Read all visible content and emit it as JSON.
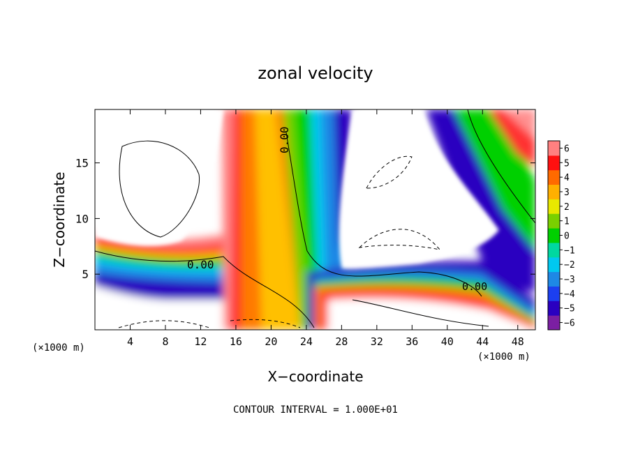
{
  "chart_data": {
    "type": "heatmap",
    "title": "zonal velocity",
    "xlabel": "X−coordinate",
    "ylabel": "Z−coordinate",
    "x_unit_label": "(×1000 m)",
    "x_unit_label_right": "(×1000 m)",
    "xlim": [
      0,
      50
    ],
    "ylim": [
      0,
      19.8
    ],
    "x_ticks": [
      4,
      8,
      12,
      16,
      20,
      24,
      28,
      32,
      36,
      40,
      44,
      48
    ],
    "y_ticks": [
      5,
      10,
      15
    ],
    "colorbar": {
      "min": -6,
      "max": 6,
      "ticks": [
        6,
        5,
        4,
        3,
        2,
        1,
        0,
        -1,
        -2,
        -3,
        -4,
        -5,
        -6
      ],
      "tick_labels": [
        "6",
        "5",
        "4",
        "3",
        "2",
        "1",
        "0",
        "−1",
        "−2",
        "−3",
        "−4",
        "−5",
        "−6"
      ],
      "colors": [
        "#7b1fa2",
        "#2a00c0",
        "#1c3ff0",
        "#1e88e5",
        "#00c8f0",
        "#00d8a0",
        "#00d000",
        "#7ad000",
        "#e8e800",
        "#ffb000",
        "#ff6a00",
        "#ff1010",
        "#ff8080"
      ]
    },
    "contour_labels": [
      "0.00",
      "0.00",
      "0.00"
    ],
    "grid": false,
    "footer": "CONTOUR INTERVAL = 1.000E+01"
  }
}
